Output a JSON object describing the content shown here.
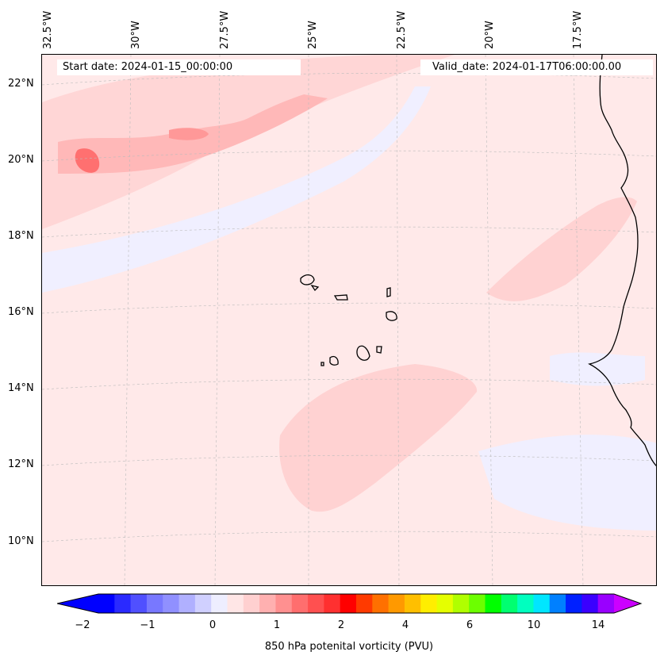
{
  "header": {
    "start_date": "Start date: 2024-01-15_00:00:00",
    "valid_date": "Valid_date: 2024-01-17T06:00:00.00"
  },
  "longitude_labels": [
    "32.5°W",
    "30°W",
    "27.5°W",
    "25°W",
    "22.5°W",
    "20°W",
    "17.5°W"
  ],
  "latitude_labels": [
    "22°N",
    "20°N",
    "18°N",
    "16°N",
    "14°N",
    "12°N",
    "10°N"
  ],
  "colorbar": {
    "title": "850 hPa potenital vorticity (PVU)",
    "tick_labels": [
      "−2",
      "−1",
      "0",
      "1",
      "2",
      "4",
      "6",
      "10",
      "14"
    ],
    "colors": [
      "#0000ff",
      "#2a2aff",
      "#5050ff",
      "#7878ff",
      "#9090ff",
      "#b0b0ff",
      "#d0d0ff",
      "#eeeeff",
      "#ffe6e6",
      "#ffd0d0",
      "#ffb0b0",
      "#ff9090",
      "#ff6e6e",
      "#ff5050",
      "#ff3030",
      "#ff0000",
      "#ff3a00",
      "#ff7000",
      "#ff9900",
      "#ffbf00",
      "#ffee00",
      "#e5ff00",
      "#b0ff00",
      "#6cff00",
      "#00ff00",
      "#00ff70",
      "#00ffbf",
      "#00e6ff",
      "#0080ff",
      "#0020ff",
      "#3a00ff",
      "#9900ff"
    ],
    "under_color": "#0000ff",
    "over_color": "#cc00ff"
  },
  "map": {
    "background_color": "#ffe9e9",
    "coastline_color": "#000000"
  }
}
